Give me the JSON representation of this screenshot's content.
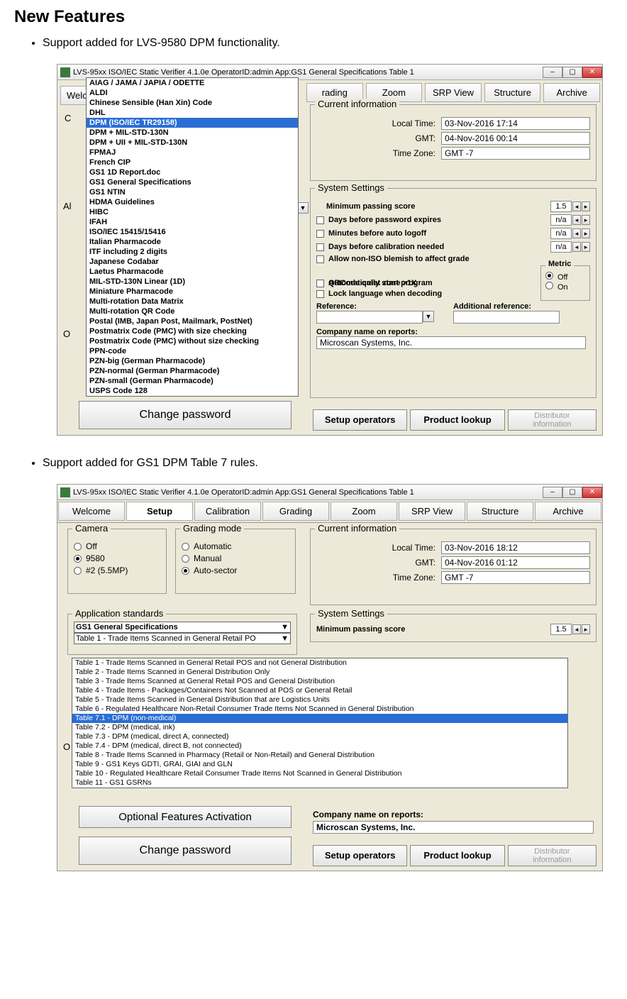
{
  "doc": {
    "heading": "New Features",
    "bullet1": "Support added for LVS-9580 DPM functionality.",
    "bullet2": "Support added for GS1 DPM Table 7 rules."
  },
  "shot1": {
    "title": "LVS-95xx ISO/IEC Static Verifier 4.1.0e    OperatorID:admin    App:GS1 General Specifications Table 1",
    "tabs": {
      "welcome": "Welc",
      "grading": "rading",
      "zoom": "Zoom",
      "srp": "SRP View",
      "structure": "Structure",
      "archive": "Archive"
    },
    "dropdown": {
      "highlighted": 4,
      "items": [
        "AIAG / JAMA / JAPIA / ODETTE",
        "ALDI",
        "Chinese Sensible (Han Xin) Code",
        "DHL",
        "DPM (ISO/IEC TR29158)",
        "DPM + MIL-STD-130N",
        "DPM + UII + MIL-STD-130N",
        "FPMAJ",
        "French CIP",
        "GS1 1D Report.doc",
        "GS1 General Specifications",
        "GS1 NTIN",
        "HDMA Guidelines",
        "HIBC",
        "IFAH",
        "ISO/IEC 15415/15416",
        "Italian Pharmacode",
        "ITF including 2 digits",
        "Japanese Codabar",
        "Laetus Pharmacode",
        "MIL-STD-130N Linear (1D)",
        "Miniature Pharmacode",
        "Multi-rotation Data Matrix",
        "Multi-rotation QR Code",
        "Postal (IMB, Japan Post, Mailmark, PostNet)",
        "Postmatrix Code (PMC) with size checking",
        "Postmatrix Code (PMC) without size checking",
        "PPN-code",
        "PZN-big (German Pharmacode)",
        "PZN-normal (German Pharmacode)",
        "PZN-small (German Pharmacode)",
        "USPS Code 128"
      ]
    },
    "left": {
      "c": "C",
      "al": "Al",
      "o": "O"
    },
    "currentinfo": {
      "legend": "Current information",
      "local_label": "Local Time:",
      "local_val": "03-Nov-2016 17:14",
      "gmt_label": "GMT:",
      "gmt_val": "04-Nov-2016 00:14",
      "tz_label": "Time Zone:",
      "tz_val": "GMT -7"
    },
    "syssettings": {
      "legend": "System Settings",
      "min_score": "Minimum passing score",
      "min_score_val": "1.5",
      "days_pwd": "Days before password expires",
      "days_pwd_val": "n/a",
      "mins_logoff": "Minutes before auto logoff",
      "mins_logoff_val": "n/a",
      "days_calib": "Days before calibration needed",
      "days_calib_val": "n/a",
      "allow_blemish": "Allow non-ISO blemish to affect grade",
      "qr_quiet": "QRCode quiet zone >1X",
      "auto_start": "Automatically start program",
      "lock_lang": "Lock language when decoding",
      "reference_label": "Reference:",
      "addref_label": "Additional reference:",
      "company_label": "Company name on reports:",
      "company_val": "Microscan Systems, Inc.",
      "metric_legend": "Metric",
      "metric_off": "Off",
      "metric_on": "On"
    },
    "buttons": {
      "change_pwd": "Change password",
      "setup_ops": "Setup operators",
      "product_lookup": "Product lookup",
      "distributor": "Distributor\ninformation"
    }
  },
  "shot2": {
    "title": "LVS-95xx ISO/IEC Static Verifier 4.1.0e    OperatorID:admin    App:GS1 General Specifications Table 1",
    "tabs": {
      "welcome": "Welcome",
      "setup": "Setup",
      "calibration": "Calibration",
      "grading": "Grading",
      "zoom": "Zoom",
      "srp": "SRP View",
      "structure": "Structure",
      "archive": "Archive"
    },
    "camera": {
      "legend": "Camera",
      "off": "Off",
      "c9580": "9580",
      "c2": "#2 (5.5MP)"
    },
    "grading": {
      "legend": "Grading mode",
      "auto": "Automatic",
      "manual": "Manual",
      "autosect": "Auto-sector"
    },
    "currentinfo": {
      "legend": "Current information",
      "local_label": "Local Time:",
      "local_val": "03-Nov-2016 18:12",
      "gmt_label": "GMT:",
      "gmt_val": "04-Nov-2016 01:12",
      "tz_label": "Time Zone:",
      "tz_val": "GMT -7"
    },
    "appstd": {
      "legend": "Application standards",
      "selected_spec": "GS1 General Specifications",
      "selected_table": "Table 1 - Trade Items Scanned in General Retail PO",
      "highlighted": 7,
      "items": [
        "Table 1 - Trade Items Scanned in General Retail POS and not General Distribution",
        "Table 2 - Trade Items Scanned in General Distribution Only",
        "Table 3 - Trade Items Scanned at General Retail POS and General Distribution",
        "Table 4 - Trade Items - Packages/Containers Not Scanned at POS or General Retail",
        "Table 5 - Trade Items Scanned in General Distribution that are Logistics Units",
        "Table 6 - Regulated Healthcare Non-Retail Consumer Trade Items Not Scanned in General Distribution",
        "Table 7.1 - DPM (non-medical)",
        "Table 7.2 - DPM (medical, ink)",
        "Table 7.3 - DPM (medical, direct A, connected)",
        "Table 7.4 - DPM (medical, direct B, not connected)",
        "Table 8 - Trade Items Scanned in Pharmacy (Retail or Non-Retail) and General Distribution",
        "Table 9 - GS1 Keys GDTI, GRAI, GIAI and GLN",
        "Table 10 - Regulated Healthcare Retail Consumer Trade Items Not Scanned in General Distribution",
        "Table 11 - GS1 GSRNs"
      ]
    },
    "syssettings": {
      "legend": "System Settings",
      "min_score": "Minimum passing score",
      "min_score_val": "1.5"
    },
    "company_label": "Company name on reports:",
    "company_val": "Microscan Systems, Inc.",
    "buttons": {
      "optfeat": "Optional Features Activation",
      "change_pwd": "Change password",
      "setup_ops": "Setup operators",
      "product_lookup": "Product lookup",
      "distributor": "Distributor\ninformation"
    }
  }
}
